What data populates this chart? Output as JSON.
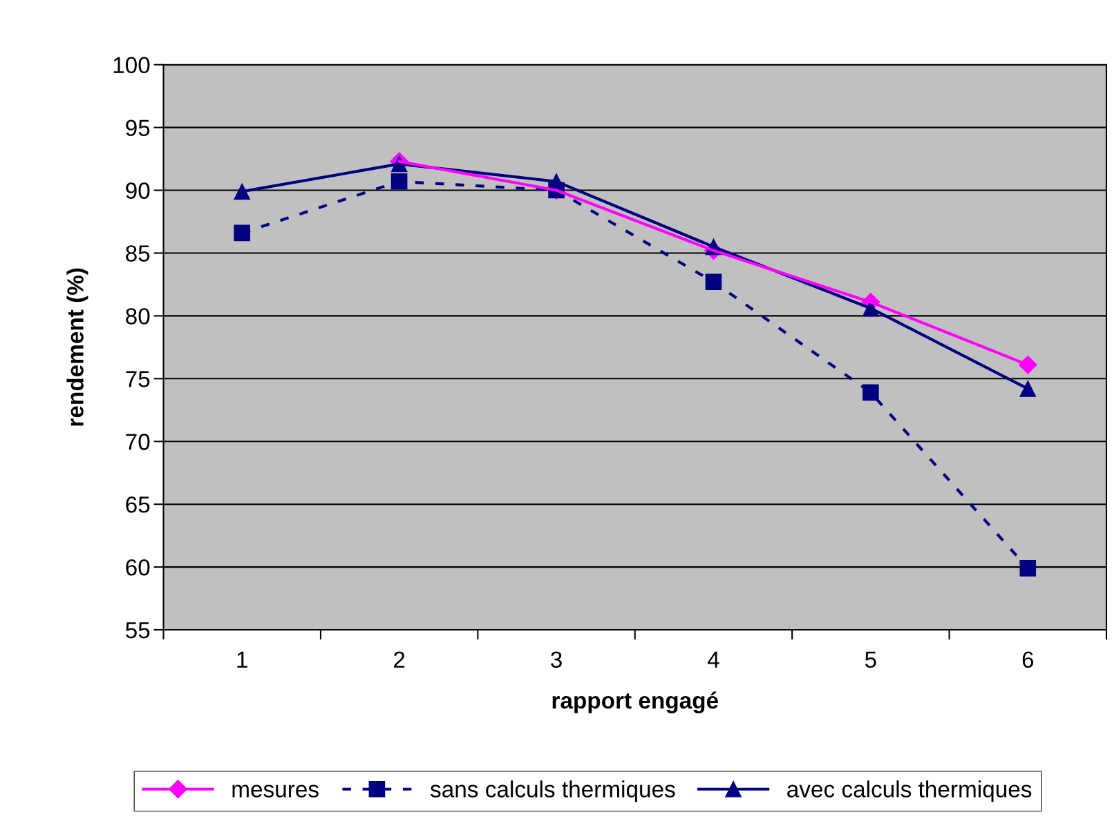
{
  "chart_data": {
    "type": "line",
    "xlabel": "rapport engagé",
    "ylabel": "rendement (%)",
    "categories": [
      "1",
      "2",
      "3",
      "4",
      "5",
      "6"
    ],
    "series": [
      {
        "name": "mesures",
        "color": "#ff00ff",
        "marker": "diamond",
        "line_style": "solid",
        "values": [
          null,
          92.3,
          90.0,
          85.2,
          81.1,
          76.1
        ]
      },
      {
        "name": "sans calculs thermiques",
        "color": "#000080",
        "marker": "square",
        "line_style": "dashed",
        "values": [
          86.6,
          90.7,
          90.0,
          82.7,
          73.9,
          59.9
        ]
      },
      {
        "name": "avec calculs thermiques",
        "color": "#000080",
        "marker": "triangle",
        "line_style": "solid",
        "values": [
          89.9,
          92.1,
          90.7,
          85.5,
          80.6,
          74.2
        ]
      }
    ],
    "ylim": [
      55,
      100
    ],
    "yticks": [
      55,
      60,
      65,
      70,
      75,
      80,
      85,
      90,
      95,
      100
    ],
    "grid": "y",
    "legend": "bottom"
  }
}
